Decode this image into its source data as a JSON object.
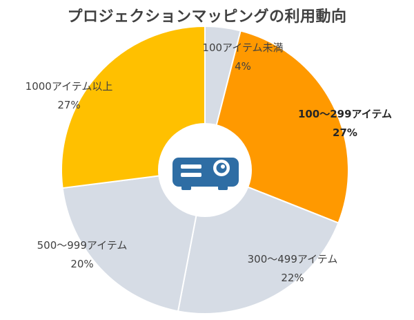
{
  "chart_data": {
    "type": "pie",
    "title": "プロジェクションマッピングの利用動向",
    "categories": [
      "100アイテム未満",
      "100〜299アイテム",
      "300〜499アイテム",
      "500〜999アイテム",
      "1000アイテム以上"
    ],
    "values": [
      4,
      27,
      22,
      20,
      27
    ],
    "value_labels": [
      "4%",
      "27%",
      "22%",
      "20%",
      "27%"
    ],
    "colors": [
      "#d6dce5",
      "#ff9900",
      "#d6dce5",
      "#d6dce5",
      "#ffc000"
    ],
    "emphasized": [
      false,
      true,
      false,
      false,
      false
    ],
    "start": "12 o'clock, clockwise",
    "center_icon": "projector-icon",
    "center_icon_color": "#2e6da4"
  }
}
